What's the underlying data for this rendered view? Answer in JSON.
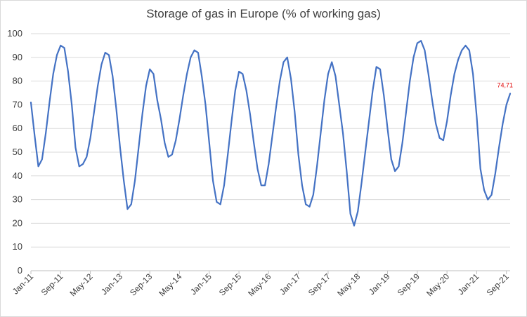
{
  "chart_data": {
    "type": "line",
    "title": "Storage of gas in Europe (% of working gas)",
    "xlabel": "",
    "ylabel": "",
    "ylim": [
      0,
      100
    ],
    "yticks": [
      0,
      10,
      20,
      30,
      40,
      50,
      60,
      70,
      80,
      90,
      100
    ],
    "xticks": [
      "Jan-11",
      "Sep-11",
      "May-12",
      "Jan-13",
      "Sep-13",
      "May-14",
      "Jan-15",
      "Sep-15",
      "May-16",
      "Jan-17",
      "Sep-17",
      "May-18",
      "Jan-19",
      "Sep-19",
      "May-20",
      "Jan-21",
      "Sep-21"
    ],
    "grid": true,
    "legend": "none",
    "series": [
      {
        "color": "#4472c4",
        "points": [
          [
            "2011-01",
            71
          ],
          [
            "2011-02",
            57
          ],
          [
            "2011-03",
            44
          ],
          [
            "2011-04",
            47
          ],
          [
            "2011-05",
            58
          ],
          [
            "2011-06",
            71
          ],
          [
            "2011-07",
            83
          ],
          [
            "2011-08",
            91
          ],
          [
            "2011-09",
            95
          ],
          [
            "2011-10",
            94
          ],
          [
            "2011-11",
            84
          ],
          [
            "2011-12",
            70
          ],
          [
            "2012-01",
            52
          ],
          [
            "2012-02",
            44
          ],
          [
            "2012-03",
            45
          ],
          [
            "2012-04",
            48
          ],
          [
            "2012-05",
            56
          ],
          [
            "2012-06",
            67
          ],
          [
            "2012-07",
            78
          ],
          [
            "2012-08",
            87
          ],
          [
            "2012-09",
            92
          ],
          [
            "2012-10",
            91
          ],
          [
            "2012-11",
            82
          ],
          [
            "2012-12",
            68
          ],
          [
            "2013-01",
            52
          ],
          [
            "2013-02",
            38
          ],
          [
            "2013-03",
            26
          ],
          [
            "2013-04",
            28
          ],
          [
            "2013-05",
            38
          ],
          [
            "2013-06",
            52
          ],
          [
            "2013-07",
            66
          ],
          [
            "2013-08",
            78
          ],
          [
            "2013-09",
            85
          ],
          [
            "2013-10",
            83
          ],
          [
            "2013-11",
            72
          ],
          [
            "2013-12",
            64
          ],
          [
            "2014-01",
            54
          ],
          [
            "2014-02",
            48
          ],
          [
            "2014-03",
            49
          ],
          [
            "2014-04",
            55
          ],
          [
            "2014-05",
            64
          ],
          [
            "2014-06",
            74
          ],
          [
            "2014-07",
            83
          ],
          [
            "2014-08",
            90
          ],
          [
            "2014-09",
            93
          ],
          [
            "2014-10",
            92
          ],
          [
            "2014-11",
            82
          ],
          [
            "2014-12",
            70
          ],
          [
            "2015-01",
            54
          ],
          [
            "2015-02",
            38
          ],
          [
            "2015-03",
            29
          ],
          [
            "2015-04",
            28
          ],
          [
            "2015-05",
            36
          ],
          [
            "2015-06",
            49
          ],
          [
            "2015-07",
            63
          ],
          [
            "2015-08",
            76
          ],
          [
            "2015-09",
            84
          ],
          [
            "2015-10",
            83
          ],
          [
            "2015-11",
            76
          ],
          [
            "2015-12",
            66
          ],
          [
            "2016-01",
            54
          ],
          [
            "2016-02",
            43
          ],
          [
            "2016-03",
            36
          ],
          [
            "2016-04",
            36
          ],
          [
            "2016-05",
            45
          ],
          [
            "2016-06",
            57
          ],
          [
            "2016-07",
            69
          ],
          [
            "2016-08",
            80
          ],
          [
            "2016-09",
            88
          ],
          [
            "2016-10",
            90
          ],
          [
            "2016-11",
            81
          ],
          [
            "2016-12",
            67
          ],
          [
            "2017-01",
            49
          ],
          [
            "2017-02",
            36
          ],
          [
            "2017-03",
            28
          ],
          [
            "2017-04",
            27
          ],
          [
            "2017-05",
            32
          ],
          [
            "2017-06",
            44
          ],
          [
            "2017-07",
            58
          ],
          [
            "2017-08",
            72
          ],
          [
            "2017-09",
            83
          ],
          [
            "2017-10",
            88
          ],
          [
            "2017-11",
            82
          ],
          [
            "2017-12",
            70
          ],
          [
            "2018-01",
            58
          ],
          [
            "2018-02",
            42
          ],
          [
            "2018-03",
            24
          ],
          [
            "2018-04",
            19
          ],
          [
            "2018-05",
            25
          ],
          [
            "2018-06",
            37
          ],
          [
            "2018-07",
            50
          ],
          [
            "2018-08",
            63
          ],
          [
            "2018-09",
            76
          ],
          [
            "2018-10",
            86
          ],
          [
            "2018-11",
            85
          ],
          [
            "2018-12",
            74
          ],
          [
            "2019-01",
            60
          ],
          [
            "2019-02",
            47
          ],
          [
            "2019-03",
            42
          ],
          [
            "2019-04",
            44
          ],
          [
            "2019-05",
            54
          ],
          [
            "2019-06",
            67
          ],
          [
            "2019-07",
            80
          ],
          [
            "2019-08",
            90
          ],
          [
            "2019-09",
            96
          ],
          [
            "2019-10",
            97
          ],
          [
            "2019-11",
            93
          ],
          [
            "2019-12",
            83
          ],
          [
            "2020-01",
            72
          ],
          [
            "2020-02",
            62
          ],
          [
            "2020-03",
            56
          ],
          [
            "2020-04",
            55
          ],
          [
            "2020-05",
            63
          ],
          [
            "2020-06",
            74
          ],
          [
            "2020-07",
            83
          ],
          [
            "2020-08",
            89
          ],
          [
            "2020-09",
            93
          ],
          [
            "2020-10",
            95
          ],
          [
            "2020-11",
            93
          ],
          [
            "2020-12",
            83
          ],
          [
            "2021-01",
            65
          ],
          [
            "2021-02",
            43
          ],
          [
            "2021-03",
            34
          ],
          [
            "2021-04",
            30
          ],
          [
            "2021-05",
            32
          ],
          [
            "2021-06",
            41
          ],
          [
            "2021-07",
            52
          ],
          [
            "2021-08",
            62
          ],
          [
            "2021-09",
            70
          ],
          [
            "2021-10",
            74.71
          ]
        ]
      }
    ],
    "annotations": [
      {
        "label": "74,71",
        "at": "2021-10",
        "color": "#e00000"
      }
    ]
  }
}
